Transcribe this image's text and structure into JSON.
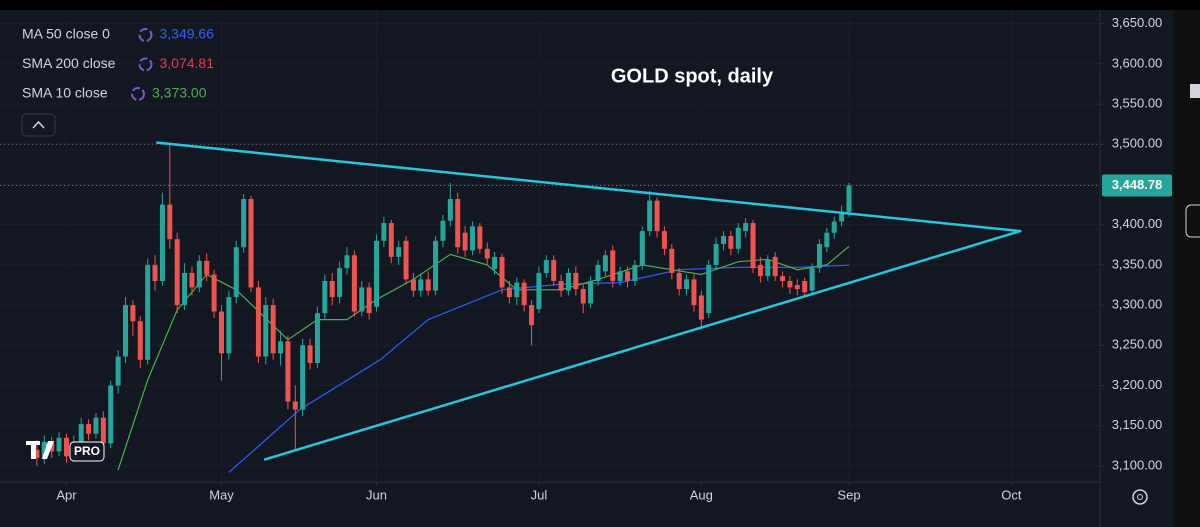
{
  "chart_data": {
    "type": "candlestick",
    "title": "GOLD spot, daily",
    "logo_text": "PRO",
    "xlim": [
      -5,
      144
    ],
    "xticks": [
      {
        "value": 4,
        "label": "Apr"
      },
      {
        "value": 25,
        "label": "May"
      },
      {
        "value": 46,
        "label": "Jun"
      },
      {
        "value": 68,
        "label": "Jul"
      },
      {
        "value": 90,
        "label": "Aug"
      },
      {
        "value": 110,
        "label": "Sep"
      },
      {
        "value": 132,
        "label": "Oct"
      }
    ],
    "ylim": [
      3080,
      3667
    ],
    "yticks": [
      {
        "value": 3100,
        "label": "3,100.00"
      },
      {
        "value": 3150,
        "label": "3,150.00"
      },
      {
        "value": 3200,
        "label": "3,200.00"
      },
      {
        "value": 3250,
        "label": "3,250.00"
      },
      {
        "value": 3300,
        "label": "3,300.00"
      },
      {
        "value": 3350,
        "label": "3,350.00"
      },
      {
        "value": 3400,
        "label": "3,400.00"
      },
      {
        "value": 3450,
        "label": "3,450.00"
      },
      {
        "value": 3500,
        "label": "3,500.00"
      },
      {
        "value": 3550,
        "label": "3,550.00"
      },
      {
        "value": 3600,
        "label": "3,600.00"
      },
      {
        "value": 3650,
        "label": "3,650.00"
      }
    ],
    "grid": true,
    "up_color": "#26a69a",
    "down_color": "#ef5350",
    "candles": {
      "open": [
        3120,
        3110,
        3130,
        3118,
        3135,
        3112,
        3130,
        3152,
        3140,
        3160,
        3128,
        3200,
        3236,
        3300,
        3280,
        3232,
        3350,
        3330,
        3425,
        3382,
        3300,
        3340,
        3322,
        3355,
        3338,
        3292,
        3240,
        3310,
        3372,
        3432,
        3322,
        3236,
        3300,
        3240,
        3255,
        3180,
        3170,
        3250,
        3228,
        3290,
        3330,
        3310,
        3346,
        3362,
        3292,
        3322,
        3298,
        3380,
        3402,
        3360,
        3380,
        3332,
        3318,
        3332,
        3318,
        3380,
        3405,
        3432,
        3390,
        3368,
        3398,
        3370,
        3345,
        3360,
        3322,
        3310,
        3328,
        3300,
        3295,
        3340,
        3356,
        3330,
        3318,
        3340,
        3320,
        3302,
        3330,
        3342,
        3368,
        3330,
        3342,
        3330,
        3350,
        3392,
        3430,
        3392,
        3370,
        3340,
        3320,
        3332,
        3312,
        3290,
        3350,
        3376,
        3386,
        3370,
        3392,
        3402,
        3350,
        3336,
        3360,
        3336,
        3330,
        3325,
        3330,
        3318,
        3346,
        3372,
        3390,
        3404,
        3416
      ],
      "high": [
        3132,
        3138,
        3136,
        3142,
        3140,
        3138,
        3160,
        3158,
        3166,
        3168,
        3206,
        3244,
        3310,
        3306,
        3286,
        3358,
        3362,
        3440,
        3500,
        3390,
        3352,
        3348,
        3362,
        3364,
        3344,
        3300,
        3318,
        3380,
        3438,
        3436,
        3330,
        3310,
        3308,
        3268,
        3262,
        3200,
        3258,
        3258,
        3298,
        3338,
        3340,
        3354,
        3372,
        3368,
        3330,
        3328,
        3388,
        3410,
        3406,
        3380,
        3386,
        3340,
        3338,
        3342,
        3386,
        3412,
        3452,
        3440,
        3398,
        3404,
        3402,
        3378,
        3366,
        3364,
        3330,
        3334,
        3332,
        3306,
        3348,
        3362,
        3362,
        3338,
        3346,
        3348,
        3326,
        3336,
        3356,
        3368,
        3374,
        3348,
        3348,
        3356,
        3398,
        3442,
        3434,
        3398,
        3376,
        3346,
        3338,
        3338,
        3318,
        3356,
        3384,
        3392,
        3392,
        3402,
        3408,
        3406,
        3360,
        3362,
        3366,
        3342,
        3336,
        3332,
        3334,
        3352,
        3382,
        3396,
        3410,
        3424,
        3452
      ],
      "low": [
        3100,
        3102,
        3110,
        3112,
        3104,
        3105,
        3124,
        3132,
        3134,
        3120,
        3122,
        3190,
        3228,
        3262,
        3222,
        3226,
        3318,
        3324,
        3370,
        3290,
        3294,
        3312,
        3316,
        3330,
        3284,
        3206,
        3232,
        3302,
        3365,
        3316,
        3228,
        3226,
        3232,
        3225,
        3170,
        3120,
        3162,
        3220,
        3222,
        3282,
        3300,
        3302,
        3338,
        3286,
        3286,
        3282,
        3292,
        3372,
        3352,
        3350,
        3326,
        3310,
        3310,
        3312,
        3312,
        3372,
        3398,
        3364,
        3360,
        3362,
        3364,
        3350,
        3338,
        3314,
        3302,
        3300,
        3292,
        3250,
        3290,
        3334,
        3324,
        3310,
        3312,
        3312,
        3290,
        3296,
        3324,
        3336,
        3322,
        3324,
        3322,
        3324,
        3344,
        3386,
        3384,
        3362,
        3332,
        3312,
        3312,
        3292,
        3270,
        3284,
        3344,
        3368,
        3362,
        3364,
        3384,
        3340,
        3328,
        3330,
        3330,
        3322,
        3314,
        3312,
        3310,
        3312,
        3340,
        3366,
        3382,
        3398,
        3410
      ],
      "close": [
        3110,
        3130,
        3118,
        3135,
        3112,
        3130,
        3152,
        3140,
        3160,
        3128,
        3200,
        3236,
        3300,
        3280,
        3232,
        3350,
        3330,
        3425,
        3382,
        3300,
        3340,
        3322,
        3355,
        3338,
        3292,
        3240,
        3310,
        3372,
        3432,
        3322,
        3236,
        3300,
        3240,
        3255,
        3180,
        3170,
        3250,
        3228,
        3290,
        3330,
        3310,
        3346,
        3362,
        3292,
        3322,
        3290,
        3380,
        3402,
        3360,
        3372,
        3332,
        3318,
        3332,
        3318,
        3380,
        3405,
        3432,
        3372,
        3368,
        3398,
        3370,
        3358,
        3360,
        3322,
        3310,
        3328,
        3300,
        3275,
        3340,
        3356,
        3330,
        3318,
        3340,
        3320,
        3302,
        3330,
        3350,
        3362,
        3330,
        3342,
        3330,
        3350,
        3392,
        3430,
        3392,
        3370,
        3340,
        3320,
        3332,
        3300,
        3282,
        3350,
        3376,
        3386,
        3370,
        3396,
        3402,
        3346,
        3336,
        3356,
        3336,
        3330,
        3322,
        3320,
        3316,
        3346,
        3376,
        3390,
        3404,
        3416,
        3448.78
      ]
    },
    "series": [
      {
        "name": "MA 50 close 0",
        "color": "#2962ff",
        "legend_value": 3349.66,
        "legend_value_label": "3,349.66",
        "x": [
          26,
          35.6,
          46.5,
          53,
          63,
          71,
          79,
          87,
          95,
          103,
          110
        ],
        "values": [
          3092,
          3170,
          3232,
          3282,
          3319,
          3326,
          3328,
          3344,
          3347,
          3347,
          3349.66
        ]
      },
      {
        "name": "SMA 200 close",
        "color": "#f23645",
        "legend_value": 3074.81,
        "legend_value_label": "3,074.81"
      },
      {
        "name": "SMA 10 close",
        "color": "#4caf50",
        "legend_value": 3373.0,
        "legend_value_label": "3,373.00",
        "x": [
          11,
          15,
          19,
          23,
          27,
          34,
          38,
          42,
          46,
          51,
          56,
          61,
          65,
          71,
          76,
          82,
          86,
          90,
          95,
          99,
          103,
          107,
          110
        ],
        "values": [
          3095,
          3207,
          3294,
          3338,
          3319,
          3257,
          3282,
          3282,
          3307,
          3332,
          3363,
          3350,
          3319,
          3319,
          3332,
          3350,
          3344,
          3338,
          3354,
          3357,
          3344,
          3350,
          3373
        ]
      }
    ],
    "trendlines": [
      {
        "color": "#26c6da",
        "points": [
          [
            16.3,
            3502
          ],
          [
            133.2,
            3392
          ]
        ]
      },
      {
        "color": "#26c6da",
        "points": [
          [
            30.9,
            3108
          ],
          [
            133.2,
            3392
          ]
        ]
      }
    ],
    "hlines": [
      3500
    ],
    "last_price": 3448.78,
    "last_price_label": "3,448.78"
  }
}
